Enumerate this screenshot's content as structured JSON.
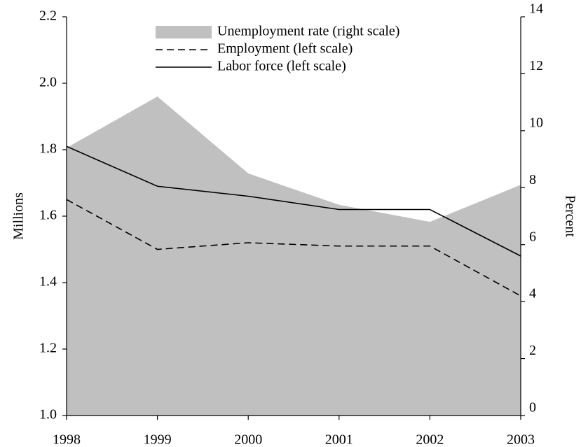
{
  "chart_data": {
    "type": "line",
    "categories": [
      "1998",
      "1999",
      "2000",
      "2001",
      "2002",
      "2003"
    ],
    "ylabel": "Millions",
    "y2label": "Percent",
    "ylim": [
      1.0,
      2.2
    ],
    "yticks": [
      {
        "value": 1.0,
        "label": "1.0"
      },
      1.2,
      1.4,
      1.6,
      1.8,
      {
        "value": 2.0,
        "label": "2.0"
      },
      2.2
    ],
    "y2lim": [
      0,
      14
    ],
    "y2ticks": [
      0,
      2,
      4,
      6,
      8,
      10,
      12,
      14
    ],
    "legend": "top",
    "series": [
      {
        "name": "Unemployment rate (right scale)",
        "color": "#c0c0c0",
        "style": "area",
        "axis": "y2",
        "values": [
          9.4,
          11.2,
          8.5,
          7.4,
          6.8,
          8.1
        ]
      },
      {
        "name": "Employment (left scale)",
        "color": "#000000",
        "style": "dashed",
        "values": [
          1.65,
          1.5,
          1.52,
          1.51,
          1.51,
          1.36
        ]
      },
      {
        "name": "Labor force (left scale)",
        "color": "#000000",
        "style": "solid",
        "values": [
          1.81,
          1.69,
          1.66,
          1.62,
          1.62,
          1.48
        ]
      }
    ]
  }
}
